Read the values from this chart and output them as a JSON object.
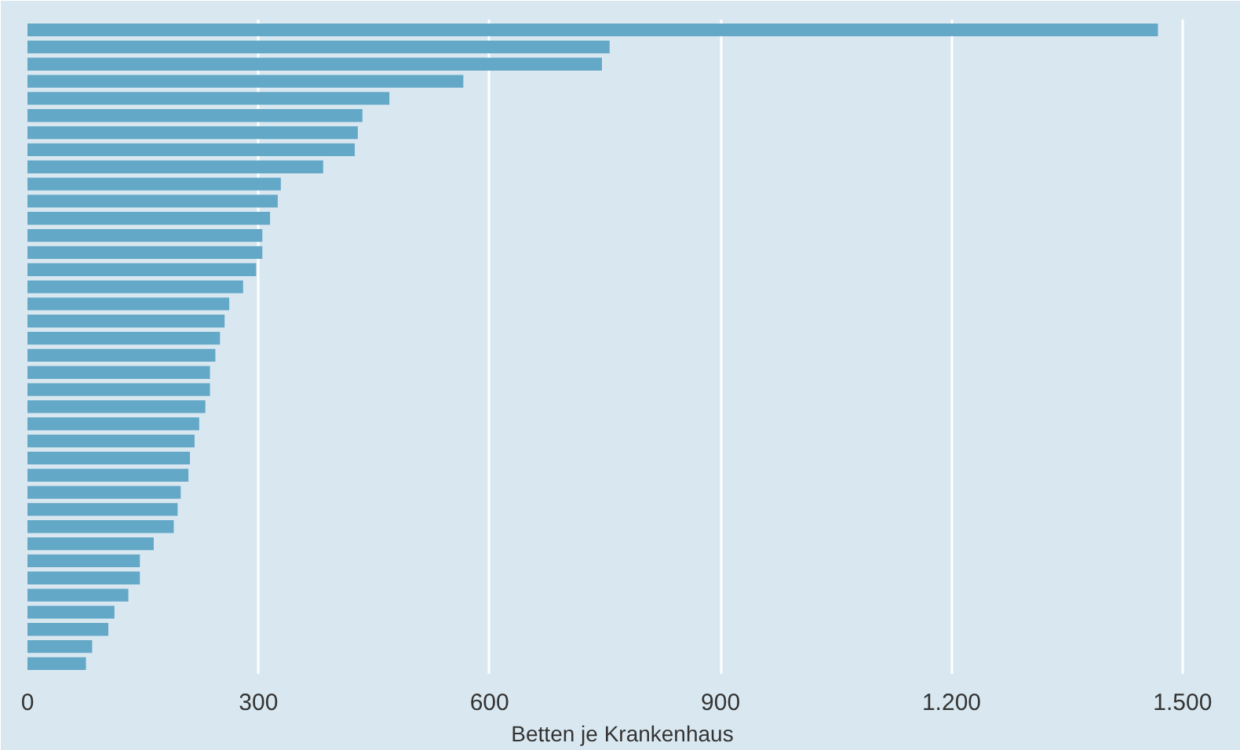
{
  "chart_data": {
    "type": "bar",
    "orientation": "horizontal",
    "xlabel": "Betten je Krankenhaus",
    "categories": [
      null,
      null,
      null,
      null,
      null,
      null,
      null,
      null,
      null,
      null,
      null,
      null,
      null,
      null,
      null,
      null,
      null,
      null,
      null,
      null,
      null,
      null,
      null,
      null,
      null,
      null,
      null,
      null,
      null,
      null,
      null,
      null,
      null,
      null,
      null,
      null,
      null,
      null
    ],
    "values": [
      1468,
      756,
      746,
      566,
      470,
      435,
      429,
      425,
      384,
      329,
      325,
      315,
      305,
      305,
      297,
      280,
      262,
      256,
      250,
      244,
      237,
      237,
      231,
      223,
      217,
      211,
      209,
      199,
      195,
      190,
      164,
      146,
      146,
      131,
      113,
      105,
      84,
      76
    ],
    "color": "#64a8c8",
    "xlim": [
      0,
      1545
    ],
    "xticks": [
      0,
      300,
      600,
      900,
      {
        "value": 1200,
        "label": "1.200"
      },
      {
        "value": 1500,
        "label": "1.500"
      }
    ],
    "grid": "x"
  }
}
